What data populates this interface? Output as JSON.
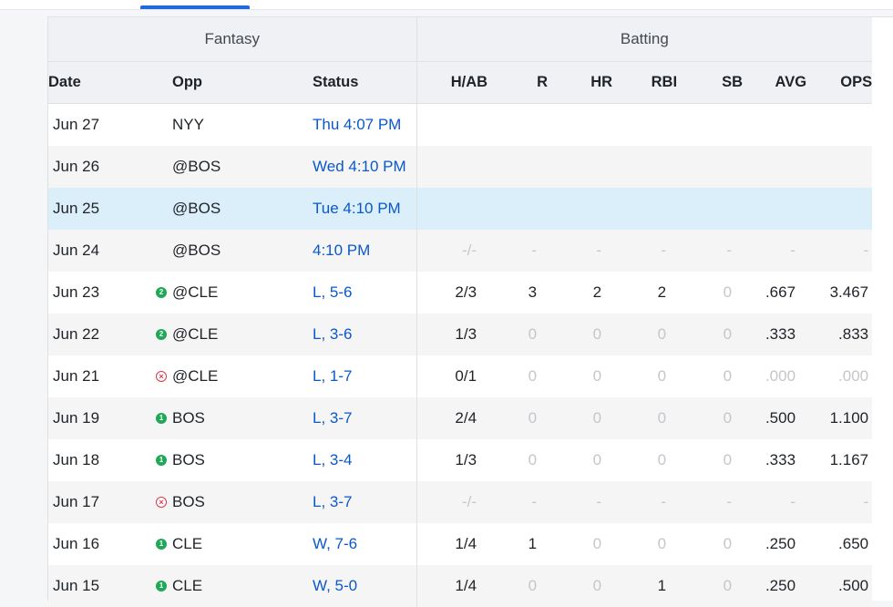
{
  "headers": {
    "group_fantasy": "Fantasy",
    "group_batting": "Batting",
    "date": "Date",
    "opp": "Opp",
    "status": "Status",
    "hab": "H/AB",
    "r": "R",
    "hr": "HR",
    "rbi": "RBI",
    "sb": "SB",
    "avg": "AVG",
    "ops": "OPS"
  },
  "colors": {
    "accent": "#1e6be0",
    "link": "#0a58ca",
    "highlight_row": "#dbeffa",
    "badge_green": "#1fa855",
    "badge_red": "#e0344b"
  },
  "rows": [
    {
      "date": "Jun 27",
      "badge": "",
      "badge_text": "",
      "opp": "NYY",
      "status": "Thu 4:07 PM",
      "hab": "",
      "r": "",
      "hr": "",
      "rbi": "",
      "sb": "",
      "avg": "",
      "ops": ""
    },
    {
      "date": "Jun 26",
      "badge": "",
      "badge_text": "",
      "opp": "@BOS",
      "status": "Wed 4:10 PM",
      "hab": "",
      "r": "",
      "hr": "",
      "rbi": "",
      "sb": "",
      "avg": "",
      "ops": ""
    },
    {
      "date": "Jun 25",
      "badge": "",
      "badge_text": "",
      "opp": "@BOS",
      "status": "Tue 4:10 PM",
      "hab": "",
      "r": "",
      "hr": "",
      "rbi": "",
      "sb": "",
      "avg": "",
      "ops": ""
    },
    {
      "date": "Jun 24",
      "badge": "",
      "badge_text": "",
      "opp": "@BOS",
      "status": "4:10 PM",
      "hab": "-/-",
      "r": "-",
      "hr": "-",
      "rbi": "-",
      "sb": "-",
      "avg": "-",
      "ops": "-"
    },
    {
      "date": "Jun 23",
      "badge": "green",
      "badge_text": "2",
      "opp": "@CLE",
      "status": "L, 5-6",
      "hab": "2/3",
      "r": "3",
      "hr": "2",
      "rbi": "2",
      "sb": "0",
      "avg": ".667",
      "ops": "3.467"
    },
    {
      "date": "Jun 22",
      "badge": "green",
      "badge_text": "2",
      "opp": "@CLE",
      "status": "L, 3-6",
      "hab": "1/3",
      "r": "0",
      "hr": "0",
      "rbi": "0",
      "sb": "0",
      "avg": ".333",
      "ops": ".833"
    },
    {
      "date": "Jun 21",
      "badge": "red",
      "badge_text": "×",
      "opp": "@CLE",
      "status": "L, 1-7",
      "hab": "0/1",
      "r": "0",
      "hr": "0",
      "rbi": "0",
      "sb": "0",
      "avg": ".000",
      "ops": ".000"
    },
    {
      "date": "Jun 19",
      "badge": "green",
      "badge_text": "1",
      "opp": "BOS",
      "status": "L, 3-7",
      "hab": "2/4",
      "r": "0",
      "hr": "0",
      "rbi": "0",
      "sb": "0",
      "avg": ".500",
      "ops": "1.100"
    },
    {
      "date": "Jun 18",
      "badge": "green",
      "badge_text": "1",
      "opp": "BOS",
      "status": "L, 3-4",
      "hab": "1/3",
      "r": "0",
      "hr": "0",
      "rbi": "0",
      "sb": "0",
      "avg": ".333",
      "ops": "1.167"
    },
    {
      "date": "Jun 17",
      "badge": "red",
      "badge_text": "×",
      "opp": "BOS",
      "status": "L, 3-7",
      "hab": "-/-",
      "r": "-",
      "hr": "-",
      "rbi": "-",
      "sb": "-",
      "avg": "-",
      "ops": "-"
    },
    {
      "date": "Jun 16",
      "badge": "green",
      "badge_text": "1",
      "opp": "CLE",
      "status": "W, 7-6",
      "hab": "1/4",
      "r": "1",
      "hr": "0",
      "rbi": "0",
      "sb": "0",
      "avg": ".250",
      "ops": ".650"
    },
    {
      "date": "Jun 15",
      "badge": "green",
      "badge_text": "1",
      "opp": "CLE",
      "status": "W, 5-0",
      "hab": "1/4",
      "r": "0",
      "hr": "0",
      "rbi": "1",
      "sb": "0",
      "avg": ".250",
      "ops": ".500"
    }
  ]
}
